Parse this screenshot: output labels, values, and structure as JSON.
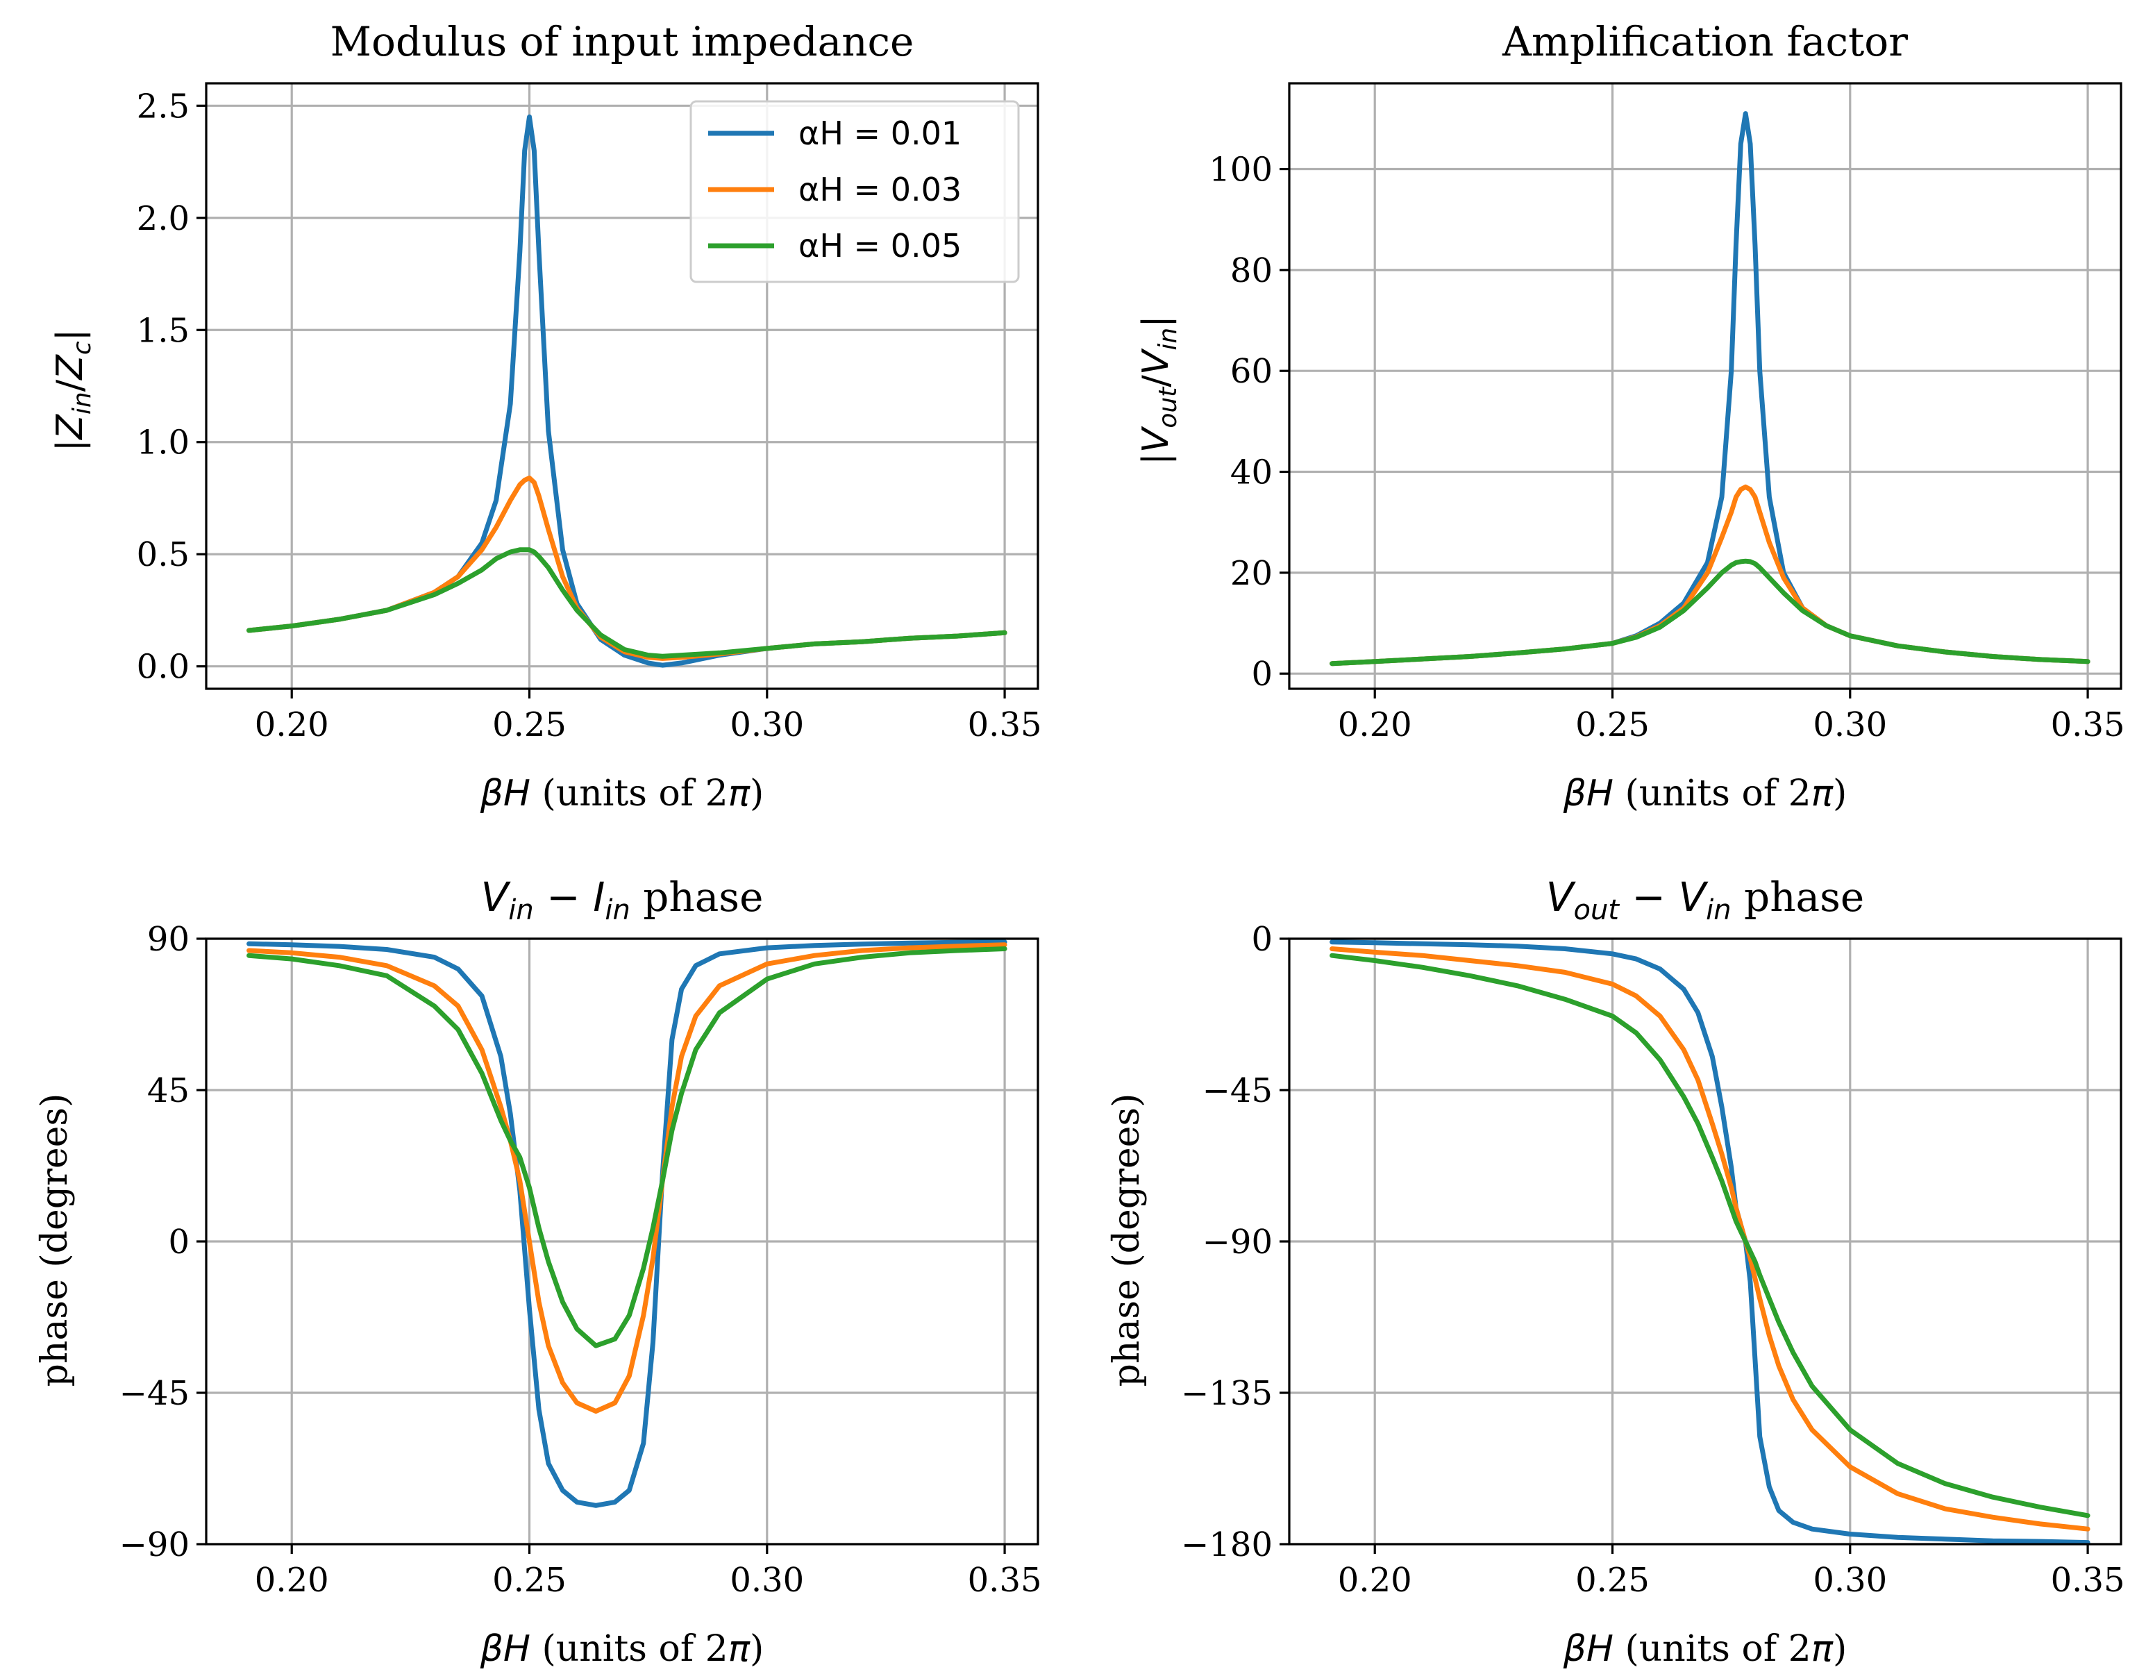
{
  "chart_data": [
    {
      "type": "line",
      "title": "Modulus of input impedance",
      "xlabel": "βH (units of 2π)",
      "ylabel": "|Z_in/Z_c|",
      "xlim": [
        0.182,
        0.357
      ],
      "ylim": [
        -0.1,
        2.6
      ],
      "xticks": [
        0.2,
        0.25,
        0.3,
        0.35
      ],
      "xtick_labels": [
        "0.20",
        "0.25",
        "0.30",
        "0.35"
      ],
      "yticks": [
        0.0,
        0.5,
        1.0,
        1.5,
        2.0,
        2.5
      ],
      "ytick_labels": [
        "0.0",
        "0.5",
        "1.0",
        "1.5",
        "2.0",
        "2.5"
      ],
      "grid": true,
      "legend": "top-right",
      "x": [
        0.191,
        0.2,
        0.21,
        0.22,
        0.23,
        0.235,
        0.24,
        0.243,
        0.246,
        0.248,
        0.249,
        0.25,
        0.251,
        0.252,
        0.254,
        0.257,
        0.26,
        0.265,
        0.27,
        0.275,
        0.278,
        0.282,
        0.29,
        0.3,
        0.31,
        0.32,
        0.33,
        0.34,
        0.35
      ],
      "series": [
        {
          "name": "αH = 0.01",
          "color": "#1f77b4",
          "values": [
            0.16,
            0.18,
            0.21,
            0.25,
            0.33,
            0.4,
            0.55,
            0.74,
            1.17,
            1.85,
            2.3,
            2.45,
            2.3,
            1.85,
            1.05,
            0.52,
            0.28,
            0.12,
            0.05,
            0.015,
            0.005,
            0.015,
            0.05,
            0.08,
            0.1,
            0.11,
            0.125,
            0.135,
            0.15
          ]
        },
        {
          "name": "αH = 0.03",
          "color": "#ff7f0e",
          "values": [
            0.16,
            0.18,
            0.21,
            0.25,
            0.33,
            0.4,
            0.52,
            0.62,
            0.74,
            0.81,
            0.83,
            0.84,
            0.82,
            0.76,
            0.61,
            0.4,
            0.26,
            0.13,
            0.065,
            0.04,
            0.035,
            0.04,
            0.055,
            0.08,
            0.1,
            0.11,
            0.125,
            0.135,
            0.15
          ]
        },
        {
          "name": "αH = 0.05",
          "color": "#2ca02c",
          "values": [
            0.16,
            0.18,
            0.21,
            0.25,
            0.32,
            0.37,
            0.43,
            0.48,
            0.51,
            0.52,
            0.52,
            0.52,
            0.51,
            0.49,
            0.44,
            0.34,
            0.25,
            0.14,
            0.075,
            0.05,
            0.045,
            0.05,
            0.06,
            0.08,
            0.1,
            0.11,
            0.125,
            0.135,
            0.15
          ]
        }
      ]
    },
    {
      "type": "line",
      "title": "Amplification factor",
      "xlabel": "βH (units of 2π)",
      "ylabel": "|V_out/V_in|",
      "xlim": [
        0.182,
        0.357
      ],
      "ylim": [
        -3,
        117
      ],
      "xticks": [
        0.2,
        0.25,
        0.3,
        0.35
      ],
      "xtick_labels": [
        "0.20",
        "0.25",
        "0.30",
        "0.35"
      ],
      "yticks": [
        0,
        20,
        40,
        60,
        80,
        100
      ],
      "ytick_labels": [
        "0",
        "20",
        "40",
        "60",
        "80",
        "100"
      ],
      "grid": true,
      "x": [
        0.191,
        0.2,
        0.21,
        0.22,
        0.23,
        0.24,
        0.25,
        0.255,
        0.26,
        0.265,
        0.27,
        0.273,
        0.275,
        0.276,
        0.277,
        0.278,
        0.279,
        0.28,
        0.281,
        0.283,
        0.286,
        0.29,
        0.295,
        0.3,
        0.31,
        0.32,
        0.33,
        0.34,
        0.35
      ],
      "series": [
        {
          "name": "αH = 0.01",
          "color": "#1f77b4",
          "values": [
            2.0,
            2.4,
            2.9,
            3.4,
            4.1,
            4.9,
            6.0,
            7.5,
            10,
            14,
            22,
            35,
            60,
            85,
            105,
            111,
            105,
            85,
            60,
            35,
            20,
            13,
            9.5,
            7.5,
            5.5,
            4.3,
            3.4,
            2.8,
            2.4
          ]
        },
        {
          "name": "αH = 0.03",
          "color": "#ff7f0e",
          "values": [
            2.0,
            2.4,
            2.9,
            3.4,
            4.1,
            4.9,
            6.0,
            7.3,
            9.5,
            13,
            20,
            27,
            32,
            35,
            36.5,
            37,
            36.5,
            35,
            32,
            26,
            19,
            13,
            9.5,
            7.5,
            5.5,
            4.3,
            3.4,
            2.8,
            2.4
          ]
        },
        {
          "name": "αH = 0.05",
          "color": "#2ca02c",
          "values": [
            2.0,
            2.4,
            2.9,
            3.4,
            4.1,
            4.9,
            6.0,
            7.2,
            9.2,
            12.5,
            17,
            20,
            21.5,
            22,
            22.2,
            22.3,
            22.2,
            21.8,
            21,
            19,
            16,
            12.5,
            9.5,
            7.5,
            5.5,
            4.3,
            3.4,
            2.8,
            2.4
          ]
        }
      ]
    },
    {
      "type": "line",
      "title": "V_in − I_in phase",
      "xlabel": "βH (units of 2π)",
      "ylabel": "phase (degrees)",
      "xlim": [
        0.182,
        0.357
      ],
      "ylim": [
        -90,
        90
      ],
      "xticks": [
        0.2,
        0.25,
        0.3,
        0.35
      ],
      "xtick_labels": [
        "0.20",
        "0.25",
        "0.30",
        "0.35"
      ],
      "yticks": [
        -90,
        -45,
        0,
        45,
        90
      ],
      "ytick_labels": [
        "−90",
        "−45",
        "0",
        "45",
        "90"
      ],
      "grid": true,
      "x": [
        0.191,
        0.2,
        0.21,
        0.22,
        0.23,
        0.235,
        0.24,
        0.244,
        0.246,
        0.248,
        0.25,
        0.252,
        0.254,
        0.257,
        0.26,
        0.264,
        0.268,
        0.271,
        0.274,
        0.276,
        0.278,
        0.28,
        0.282,
        0.285,
        0.29,
        0.3,
        0.31,
        0.32,
        0.33,
        0.34,
        0.35
      ],
      "series": [
        {
          "name": "αH = 0.01",
          "color": "#1f77b4",
          "values": [
            88.5,
            88.2,
            87.7,
            86.8,
            84.5,
            81,
            73,
            55,
            38,
            15,
            -20,
            -50,
            -66,
            -74,
            -77.5,
            -78.5,
            -77.5,
            -74,
            -60,
            -30,
            20,
            60,
            75,
            82,
            85.5,
            87.3,
            88,
            88.4,
            88.7,
            88.9,
            89
          ]
        },
        {
          "name": "αH = 0.03",
          "color": "#ff7f0e",
          "values": [
            86.5,
            85.8,
            84.5,
            82,
            76,
            70,
            57,
            40,
            30,
            18,
            0,
            -18,
            -31,
            -42,
            -48,
            -50.5,
            -48,
            -40,
            -22,
            -5,
            18,
            40,
            55,
            67,
            76,
            82.5,
            85,
            86.5,
            87.3,
            87.8,
            88.2
          ]
        },
        {
          "name": "αH = 0.05",
          "color": "#2ca02c",
          "values": [
            85,
            84,
            82,
            79,
            70,
            63,
            50,
            36,
            30,
            25,
            16,
            4,
            -6,
            -18,
            -26,
            -31,
            -29,
            -22,
            -8,
            4,
            18,
            33,
            44,
            57,
            68,
            78,
            82.5,
            84.5,
            85.8,
            86.5,
            87
          ]
        }
      ]
    },
    {
      "type": "line",
      "title": "V_out − V_in phase",
      "xlabel": "βH (units of 2π)",
      "ylabel": "phase (degrees)",
      "xlim": [
        0.182,
        0.357
      ],
      "ylim": [
        -180,
        0
      ],
      "xticks": [
        0.2,
        0.25,
        0.3,
        0.35
      ],
      "xtick_labels": [
        "0.20",
        "0.25",
        "0.30",
        "0.35"
      ],
      "yticks": [
        -180,
        -135,
        -90,
        -45,
        0
      ],
      "ytick_labels": [
        "−180",
        "−135",
        "−90",
        "−45",
        "0"
      ],
      "grid": true,
      "x": [
        0.191,
        0.2,
        0.21,
        0.22,
        0.23,
        0.24,
        0.25,
        0.255,
        0.26,
        0.265,
        0.268,
        0.271,
        0.273,
        0.275,
        0.276,
        0.277,
        0.278,
        0.279,
        0.28,
        0.281,
        0.283,
        0.285,
        0.288,
        0.292,
        0.3,
        0.31,
        0.32,
        0.33,
        0.34,
        0.35
      ],
      "series": [
        {
          "name": "αH = 0.01",
          "color": "#1f77b4",
          "values": [
            -1,
            -1.2,
            -1.5,
            -1.8,
            -2.2,
            -3,
            -4.5,
            -6,
            -9,
            -15,
            -22,
            -35,
            -50,
            -68,
            -80,
            -85,
            -90,
            -102,
            -125,
            -148,
            -163,
            -170,
            -173.5,
            -175.5,
            -177,
            -178,
            -178.5,
            -179,
            -179.2,
            -179.5
          ]
        },
        {
          "name": "αH = 0.03",
          "color": "#ff7f0e",
          "values": [
            -3,
            -4,
            -5,
            -6.5,
            -8,
            -10,
            -13.5,
            -17,
            -23,
            -33,
            -42,
            -55,
            -64,
            -74,
            -80,
            -85,
            -90,
            -95,
            -101,
            -107,
            -118,
            -127,
            -137,
            -146,
            -157,
            -165,
            -169.5,
            -172,
            -174,
            -175.5
          ]
        },
        {
          "name": "αH = 0.05",
          "color": "#2ca02c",
          "values": [
            -5,
            -6.5,
            -8.5,
            -11,
            -14,
            -18,
            -23,
            -28,
            -36,
            -47,
            -55,
            -65,
            -72,
            -80,
            -84,
            -87,
            -90,
            -93,
            -96,
            -100,
            -107,
            -114,
            -123,
            -133,
            -146,
            -156,
            -162,
            -166,
            -169,
            -171.5
          ]
        }
      ]
    }
  ]
}
